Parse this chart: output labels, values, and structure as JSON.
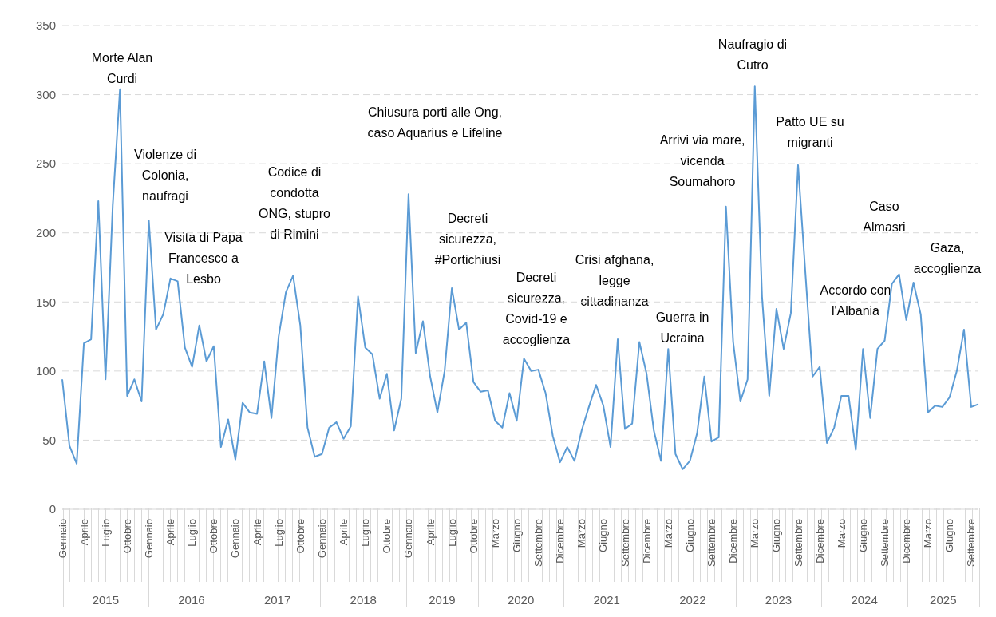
{
  "chart_data": {
    "type": "line",
    "color": "#5b9bd5",
    "marker": "none",
    "line_style": "solid",
    "grid": "y",
    "legend": false,
    "categories": [
      "Gennaio",
      null,
      null,
      "Aprile",
      null,
      null,
      "Luglio",
      null,
      null,
      "Ottobre",
      null,
      null,
      "Gennaio",
      null,
      null,
      "Aprile",
      null,
      null,
      "Luglio",
      null,
      null,
      "Ottobre",
      null,
      null,
      "Gennaio",
      null,
      null,
      "Aprile",
      null,
      null,
      "Luglio",
      null,
      null,
      "Ottobre",
      null,
      null,
      "Gennaio",
      null,
      null,
      "Aprile",
      null,
      null,
      "Luglio",
      null,
      null,
      "Ottobre",
      null,
      null,
      "Gennaio",
      null,
      null,
      "Aprile",
      null,
      null,
      "Luglio",
      null,
      null,
      "Ottobre",
      null,
      null,
      "Marzo",
      null,
      null,
      "Giugno",
      null,
      null,
      "Settembre",
      null,
      null,
      "Dicembre",
      null,
      null,
      "Marzo",
      null,
      null,
      "Giugno",
      null,
      null,
      "Settembre",
      null,
      null,
      "Dicembre",
      null,
      null,
      "Marzo",
      null,
      null,
      "Giugno",
      null,
      null,
      "Settembre",
      null,
      null,
      "Dicembre",
      null,
      null,
      "Marzo",
      null,
      null,
      "Giugno",
      null,
      null,
      "Settembre",
      null,
      null,
      "Dicembre",
      null,
      null,
      "Marzo",
      null,
      null,
      "Giugno",
      null,
      null,
      "Settembre",
      null,
      null,
      "Dicembre",
      null,
      null,
      "Marzo",
      null,
      null,
      "Giugno",
      null,
      null,
      "Settembre",
      null
    ],
    "values": [
      94,
      46,
      33,
      120,
      123,
      223,
      94,
      220,
      304,
      82,
      94,
      78,
      209,
      130,
      141,
      167,
      165,
      117,
      103,
      133,
      107,
      118,
      45,
      65,
      36,
      77,
      70,
      69,
      107,
      66,
      125,
      157,
      169,
      133,
      59,
      38,
      40,
      59,
      63,
      51,
      60,
      154,
      117,
      112,
      80,
      98,
      57,
      80,
      228,
      113,
      136,
      96,
      70,
      100,
      160,
      130,
      135,
      92,
      85,
      86,
      64,
      59,
      84,
      64,
      109,
      100,
      101,
      84,
      53,
      34,
      45,
      35,
      57,
      74,
      90,
      75,
      45,
      123,
      58,
      62,
      121,
      98,
      57,
      35,
      116,
      40,
      29,
      35,
      55,
      96,
      49,
      52,
      219,
      121,
      78,
      94,
      306,
      154,
      82,
      145,
      116,
      142,
      249,
      172,
      96,
      103,
      48,
      59,
      82,
      82,
      43,
      116,
      66,
      116,
      122,
      163,
      170,
      137,
      164,
      141,
      70,
      75,
      74,
      81,
      100,
      130,
      74,
      76
    ],
    "ylim": [
      0,
      350
    ],
    "yticks": [
      0,
      50,
      100,
      150,
      200,
      250,
      300,
      350
    ],
    "annotations": [
      "Morte Alan Curdi",
      "Violenze di Colonia, naufragi",
      "Visita di Papa Francesco a Lesbo",
      "Codice di condotta ONG, stupro di Rimini",
      "Chiusura porti alle Ong, caso Aquarius e Lifeline",
      "Decreti sicurezza, #Portichiusi",
      "Decreti sicurezza, Covid-19 e accoglienza",
      "Crisi afghana, legge cittadinanza",
      "Guerra in Ucraina",
      "Arrivi via mare, vicenda Soumahoro",
      "Naufragio di Cutro",
      "Patto UE su migranti",
      "Accordo con l'Albania",
      "Caso Almasri",
      "Gaza, accoglienza",
      "2015",
      "2016",
      "2017",
      "2018",
      "2019",
      "2020",
      "2021",
      "2022",
      "2023",
      "2024",
      "2025"
    ]
  }
}
